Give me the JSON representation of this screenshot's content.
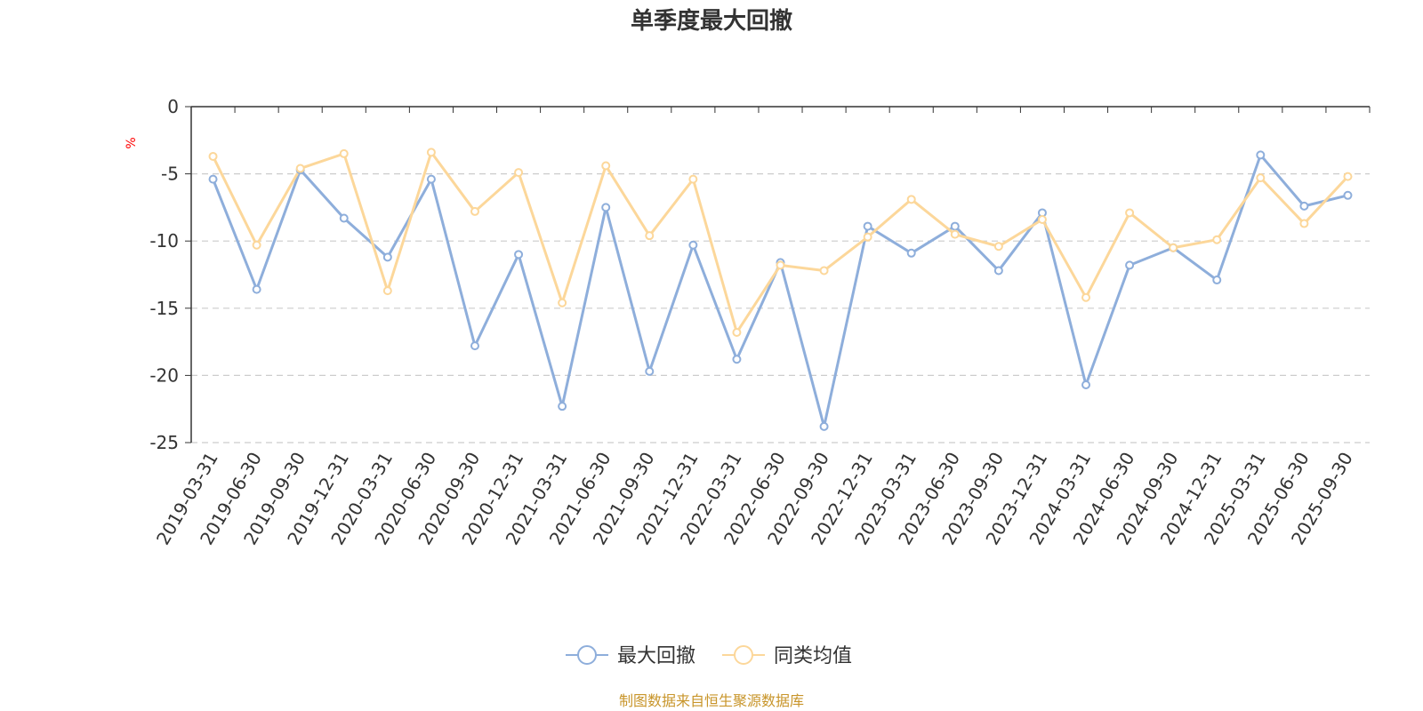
{
  "chart_data": {
    "type": "line",
    "title": "单季度最大回撤",
    "ylabel": "%",
    "ylim": [
      -25,
      0
    ],
    "yticks": [
      0,
      -5,
      -10,
      -15,
      -20,
      -25
    ],
    "grid": true,
    "legend_position": "bottom",
    "categories": [
      "2019-03-31",
      "2019-06-30",
      "2019-09-30",
      "2019-12-31",
      "2020-03-31",
      "2020-06-30",
      "2020-09-30",
      "2020-12-31",
      "2021-03-31",
      "2021-06-30",
      "2021-09-30",
      "2021-12-31",
      "2022-03-31",
      "2022-06-30",
      "2022-09-30",
      "2022-12-31",
      "2023-03-31",
      "2023-06-30",
      "2023-09-30",
      "2023-12-31",
      "2024-03-31",
      "2024-06-30",
      "2024-09-30",
      "2024-12-31",
      "2025-03-31",
      "2025-06-30",
      "2025-09-30"
    ],
    "series": [
      {
        "name": "最大回撤",
        "color": "#8eaedb",
        "values": [
          -5.4,
          -13.6,
          -4.7,
          -8.3,
          -11.2,
          -5.4,
          -17.8,
          -11.0,
          -22.3,
          -7.5,
          -19.7,
          -10.3,
          -18.8,
          -11.6,
          -23.8,
          -8.9,
          -10.9,
          -8.9,
          -12.2,
          -7.9,
          -20.7,
          -11.8,
          -10.5,
          -12.9,
          -3.6,
          -7.4,
          -6.6
        ]
      },
      {
        "name": "同类均值",
        "color": "#fcd79a",
        "values": [
          -3.7,
          -10.3,
          -4.6,
          -3.5,
          -13.7,
          -3.4,
          -7.8,
          -4.9,
          -14.6,
          -4.4,
          -9.6,
          -5.4,
          -16.8,
          -11.8,
          -12.2,
          -9.7,
          -6.9,
          -9.5,
          -10.4,
          -8.4,
          -14.2,
          -7.9,
          -10.5,
          -9.9,
          -5.3,
          -8.7,
          -5.2
        ]
      }
    ]
  },
  "footer": {
    "source": "制图数据来自恒生聚源数据库"
  }
}
